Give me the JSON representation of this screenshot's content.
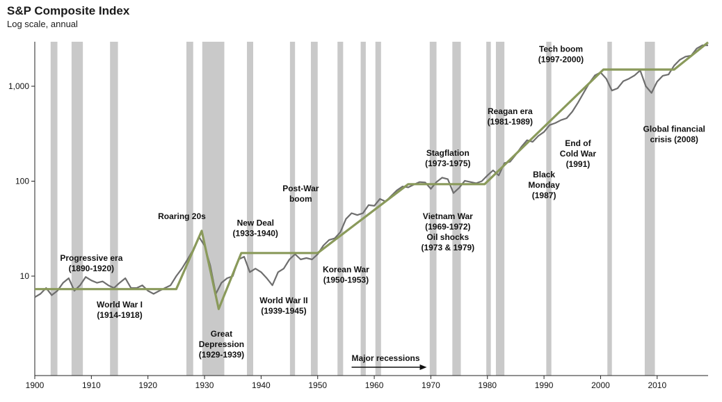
{
  "chart_data": {
    "type": "line",
    "title": "S&P Composite Index",
    "subtitle": "Log scale, annual",
    "y_scale": "log",
    "xlim": [
      1900,
      2019
    ],
    "ylim_log10": [
      0.0,
      1.25
    ],
    "x_ticks": [
      1900,
      1910,
      1920,
      1930,
      1940,
      1950,
      1960,
      1970,
      1980,
      1990,
      2000,
      2010
    ],
    "y_ticks": [
      {
        "value": 10,
        "label": "10"
      },
      {
        "value": 100,
        "label": "100"
      },
      {
        "value": 1000,
        "label": "1,000"
      }
    ],
    "recessions": [
      [
        1902.8,
        1904.0
      ],
      [
        1906.5,
        1908.5
      ],
      [
        1913.3,
        1914.7
      ],
      [
        1926.8,
        1928.0
      ],
      [
        1929.6,
        1933.5
      ],
      [
        1937.5,
        1938.6
      ],
      [
        1945.1,
        1946.0
      ],
      [
        1948.8,
        1950.0
      ],
      [
        1953.5,
        1954.5
      ],
      [
        1957.6,
        1958.5
      ],
      [
        1960.2,
        1961.2
      ],
      [
        1969.8,
        1971.0
      ],
      [
        1973.8,
        1975.3
      ],
      [
        1979.8,
        1980.6
      ],
      [
        1981.5,
        1983.0
      ],
      [
        1990.4,
        1991.3
      ],
      [
        2001.2,
        2002.0
      ],
      [
        2007.8,
        2009.6
      ]
    ],
    "series": [
      {
        "name": "",
        "color": "#6e6e6e",
        "x": [
          1900,
          1901,
          1902,
          1903,
          1904,
          1905,
          1906,
          1907,
          1908,
          1909,
          1910,
          1911,
          1912,
          1913,
          1914,
          1915,
          1916,
          1917,
          1918,
          1919,
          1920,
          1921,
          1922,
          1923,
          1924,
          1925,
          1926,
          1927,
          1928,
          1929,
          1930,
          1931,
          1932,
          1933,
          1934,
          1935,
          1936,
          1937,
          1938,
          1939,
          1940,
          1941,
          1942,
          1943,
          1944,
          1945,
          1946,
          1947,
          1948,
          1949,
          1950,
          1951,
          1952,
          1953,
          1954,
          1955,
          1956,
          1957,
          1958,
          1959,
          1960,
          1961,
          1962,
          1963,
          1964,
          1965,
          1966,
          1967,
          1968,
          1969,
          1970,
          1971,
          1972,
          1973,
          1974,
          1975,
          1976,
          1977,
          1978,
          1979,
          1980,
          1981,
          1982,
          1983,
          1984,
          1985,
          1986,
          1987,
          1988,
          1989,
          1990,
          1991,
          1992,
          1993,
          1994,
          1995,
          1996,
          1997,
          1998,
          1999,
          2000,
          2001,
          2002,
          2003,
          2004,
          2005,
          2006,
          2007,
          2008,
          2009,
          2010,
          2011,
          2012,
          2013,
          2014,
          2015,
          2016,
          2017,
          2018,
          2019
        ],
        "y": [
          6.0,
          6.5,
          7.5,
          6.3,
          7.0,
          8.5,
          9.5,
          7.0,
          8.0,
          9.8,
          9.0,
          8.5,
          8.8,
          8.0,
          7.5,
          8.5,
          9.5,
          7.5,
          7.5,
          8.0,
          7.0,
          6.5,
          7.0,
          7.5,
          8.0,
          10.0,
          12.0,
          15.0,
          19.0,
          26.0,
          21.0,
          13.0,
          6.5,
          8.5,
          9.5,
          10.0,
          15.0,
          16.0,
          11.0,
          12.0,
          11.0,
          9.5,
          8.0,
          11.0,
          12.0,
          15.0,
          17.0,
          15.0,
          15.5,
          15.0,
          17.0,
          21.0,
          24.0,
          25.0,
          29.0,
          40.0,
          46.0,
          44.0,
          46.0,
          56.0,
          55.0,
          65.0,
          61.0,
          70.0,
          80.0,
          88.0,
          86.0,
          92.0,
          98.0,
          97.0,
          83.0,
          98.0,
          109.0,
          105.0,
          75.0,
          85.0,
          101.0,
          98.0,
          95.0,
          100.0,
          115.0,
          130.0,
          115.0,
          155.0,
          160.0,
          190.0,
          230.0,
          270.0,
          260.0,
          300.0,
          330.0,
          390.0,
          410.0,
          440.0,
          460.0,
          540.0,
          670.0,
          850.0,
          1080.0,
          1300.0,
          1400.0,
          1200.0,
          900.0,
          950.0,
          1130.0,
          1200.0,
          1300.0,
          1470.0,
          1000.0,
          850.0,
          1120.0,
          1290.0,
          1330.0,
          1650.0,
          1900.0,
          2050.0,
          2100.0,
          2500.0,
          2700.0,
          2700.0
        ]
      },
      {
        "name": "",
        "color": "#8a9a5b",
        "x": [
          1900,
          1925,
          1929.5,
          1932.5,
          1936.5,
          1950,
          1966,
          1979.5,
          2000.5,
          2013,
          2019
        ],
        "y": [
          7.3,
          7.3,
          30.0,
          4.5,
          17.5,
          17.5,
          93.0,
          93.0,
          1500.0,
          1500.0,
          2900.0
        ]
      }
    ],
    "legend": {
      "label": "Major recessions"
    },
    "annotations": [
      {
        "text": [
          "Progressive era",
          "(1890-1920)"
        ],
        "x": 1910,
        "y": 14.5
      },
      {
        "text": [
          "Roaring 20s"
        ],
        "x": 1926,
        "y": 40
      },
      {
        "text": [
          "World War I",
          "(1914-1918)"
        ],
        "x": 1915,
        "y": 4.7
      },
      {
        "text": [
          "Great",
          "Depression",
          "(1929-1939)"
        ],
        "x": 1933,
        "y": 2.3
      },
      {
        "text": [
          "New Deal",
          "(1933-1940)"
        ],
        "x": 1939,
        "y": 34
      },
      {
        "text": [
          "World War II",
          "(1939-1945)"
        ],
        "x": 1944,
        "y": 5.2
      },
      {
        "text": [
          "Post-War",
          "boom"
        ],
        "x": 1947,
        "y": 78
      },
      {
        "text": [
          "Korean War",
          "(1950-1953)"
        ],
        "x": 1955,
        "y": 11
      },
      {
        "text": [
          "Stagflation",
          "(1973-1975)"
        ],
        "x": 1973,
        "y": 185
      },
      {
        "text": [
          "Vietnam War",
          "(1969-1972)",
          "Oil shocks",
          "(1973 & 1979)"
        ],
        "x": 1973,
        "y": 40
      },
      {
        "text": [
          "Reagan era",
          "(1981-1989)"
        ],
        "x": 1984,
        "y": 510
      },
      {
        "text": [
          "Tech boom",
          "(1997-2000)"
        ],
        "x": 1993,
        "y": 2300
      },
      {
        "text": [
          "Global financial",
          "crisis (2008)"
        ],
        "x": 2013,
        "y": 330
      },
      {
        "text": [
          "End of",
          "Cold War",
          "(1991)"
        ],
        "x": 1996,
        "y": 235
      },
      {
        "text": [
          "Black",
          "Monday",
          "(1987)"
        ],
        "x": 1990,
        "y": 110
      }
    ]
  }
}
